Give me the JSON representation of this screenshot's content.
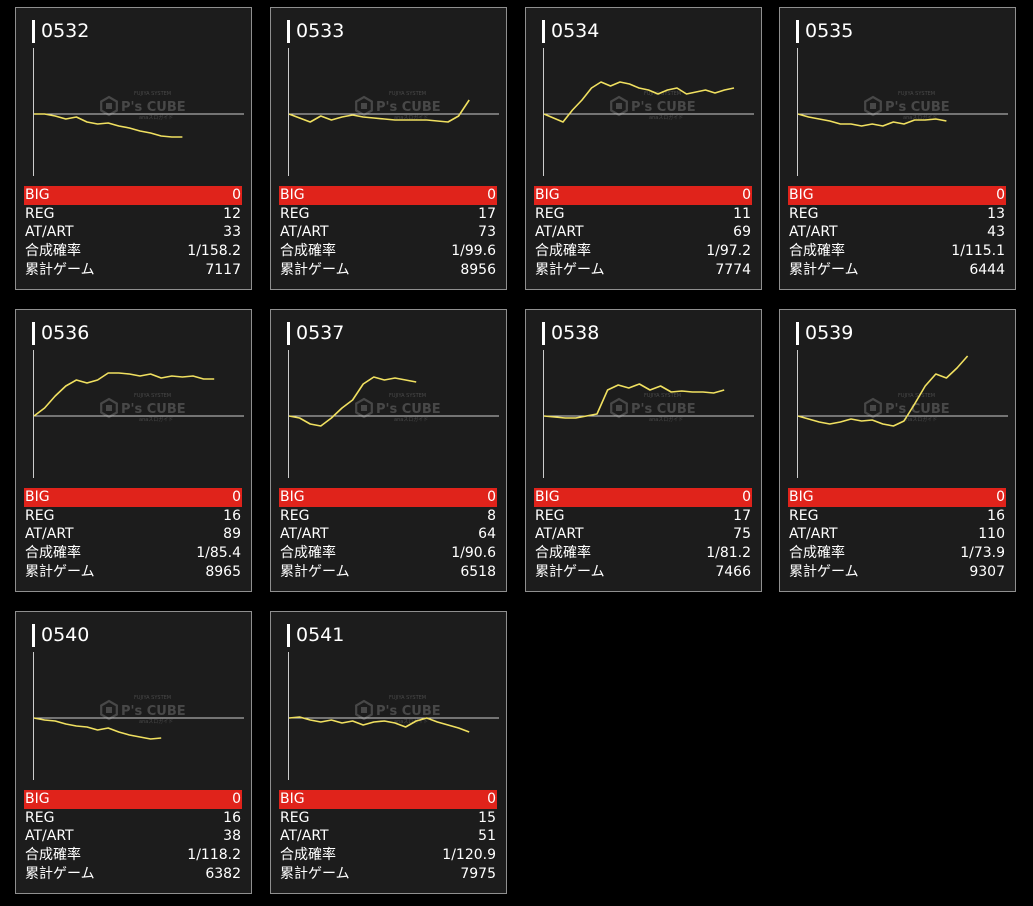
{
  "theme": {
    "background": "#000000",
    "card_background": "#1c1c1c",
    "card_border": "#8f8f8f",
    "big_row_color": "#e0231b",
    "line_color": "#f0e060",
    "axis_color": "#cccccc"
  },
  "stat_labels": {
    "big": "BIG",
    "reg": "REG",
    "at_art": "AT/ART",
    "combined_prob": "合成確率",
    "total_games": "累計ゲーム"
  },
  "watermark": {
    "brand": "P's CUBE",
    "tagline_top": "FUJIYA SYSTEM",
    "tagline_bottom": "anaスロガイド"
  },
  "machines": [
    {
      "number": "0532",
      "big": "0",
      "reg": "12",
      "at_art": "33",
      "combined_prob": "1/158.2",
      "total_games": "7117",
      "line": [
        0,
        0,
        -2,
        -5,
        -3,
        -8,
        -10,
        -9,
        -12,
        -14,
        -17,
        -19,
        -22,
        -23,
        -23
      ]
    },
    {
      "number": "0533",
      "big": "0",
      "reg": "17",
      "at_art": "73",
      "combined_prob": "1/99.6",
      "total_games": "8956",
      "line": [
        0,
        -4,
        -8,
        -2,
        -6,
        -3,
        -1,
        -3,
        -4,
        -5,
        -6,
        -6,
        -6,
        -6,
        -7,
        -8,
        -2,
        14
      ]
    },
    {
      "number": "0534",
      "big": "0",
      "reg": "11",
      "at_art": "69",
      "combined_prob": "1/97.2",
      "total_games": "7774",
      "line": [
        0,
        -4,
        -8,
        4,
        14,
        26,
        32,
        28,
        32,
        30,
        26,
        24,
        20,
        24,
        26,
        20,
        22,
        24,
        21,
        24,
        26
      ]
    },
    {
      "number": "0535",
      "big": "0",
      "reg": "13",
      "at_art": "43",
      "combined_prob": "1/115.1",
      "total_games": "6444",
      "line": [
        0,
        -3,
        -5,
        -7,
        -10,
        -10,
        -12,
        -10,
        -12,
        -8,
        -10,
        -6,
        -6,
        -5,
        -7
      ]
    },
    {
      "number": "0536",
      "big": "0",
      "reg": "16",
      "at_art": "89",
      "combined_prob": "1/85.4",
      "total_games": "8965",
      "line": [
        0,
        8,
        20,
        30,
        36,
        33,
        36,
        43,
        43,
        42,
        40,
        42,
        38,
        40,
        39,
        40,
        37,
        37
      ]
    },
    {
      "number": "0537",
      "big": "0",
      "reg": "8",
      "at_art": "64",
      "combined_prob": "1/90.6",
      "total_games": "6518",
      "line": [
        0,
        -2,
        -8,
        -10,
        -2,
        8,
        16,
        32,
        39,
        36,
        38,
        36,
        34
      ]
    },
    {
      "number": "0538",
      "big": "0",
      "reg": "17",
      "at_art": "75",
      "combined_prob": "1/81.2",
      "total_games": "7466",
      "line": [
        0,
        -1,
        -2,
        -2,
        0,
        2,
        26,
        31,
        28,
        32,
        26,
        30,
        24,
        25,
        24,
        24,
        23,
        26
      ]
    },
    {
      "number": "0539",
      "big": "0",
      "reg": "16",
      "at_art": "110",
      "combined_prob": "1/73.9",
      "total_games": "9307",
      "line": [
        0,
        -3,
        -6,
        -8,
        -6,
        -3,
        -5,
        -4,
        -8,
        -10,
        -5,
        12,
        30,
        42,
        38,
        48,
        60
      ]
    },
    {
      "number": "0540",
      "big": "0",
      "reg": "16",
      "at_art": "38",
      "combined_prob": "1/118.2",
      "total_games": "6382",
      "line": [
        0,
        -2,
        -3,
        -6,
        -8,
        -9,
        -12,
        -10,
        -14,
        -17,
        -19,
        -21,
        -20
      ]
    },
    {
      "number": "0541",
      "big": "0",
      "reg": "15",
      "at_art": "51",
      "combined_prob": "1/120.9",
      "total_games": "7975",
      "line": [
        0,
        1,
        -2,
        -4,
        -2,
        -5,
        -3,
        -7,
        -4,
        -3,
        -5,
        -9,
        -3,
        0,
        -4,
        -7,
        -10,
        -14
      ]
    }
  ]
}
